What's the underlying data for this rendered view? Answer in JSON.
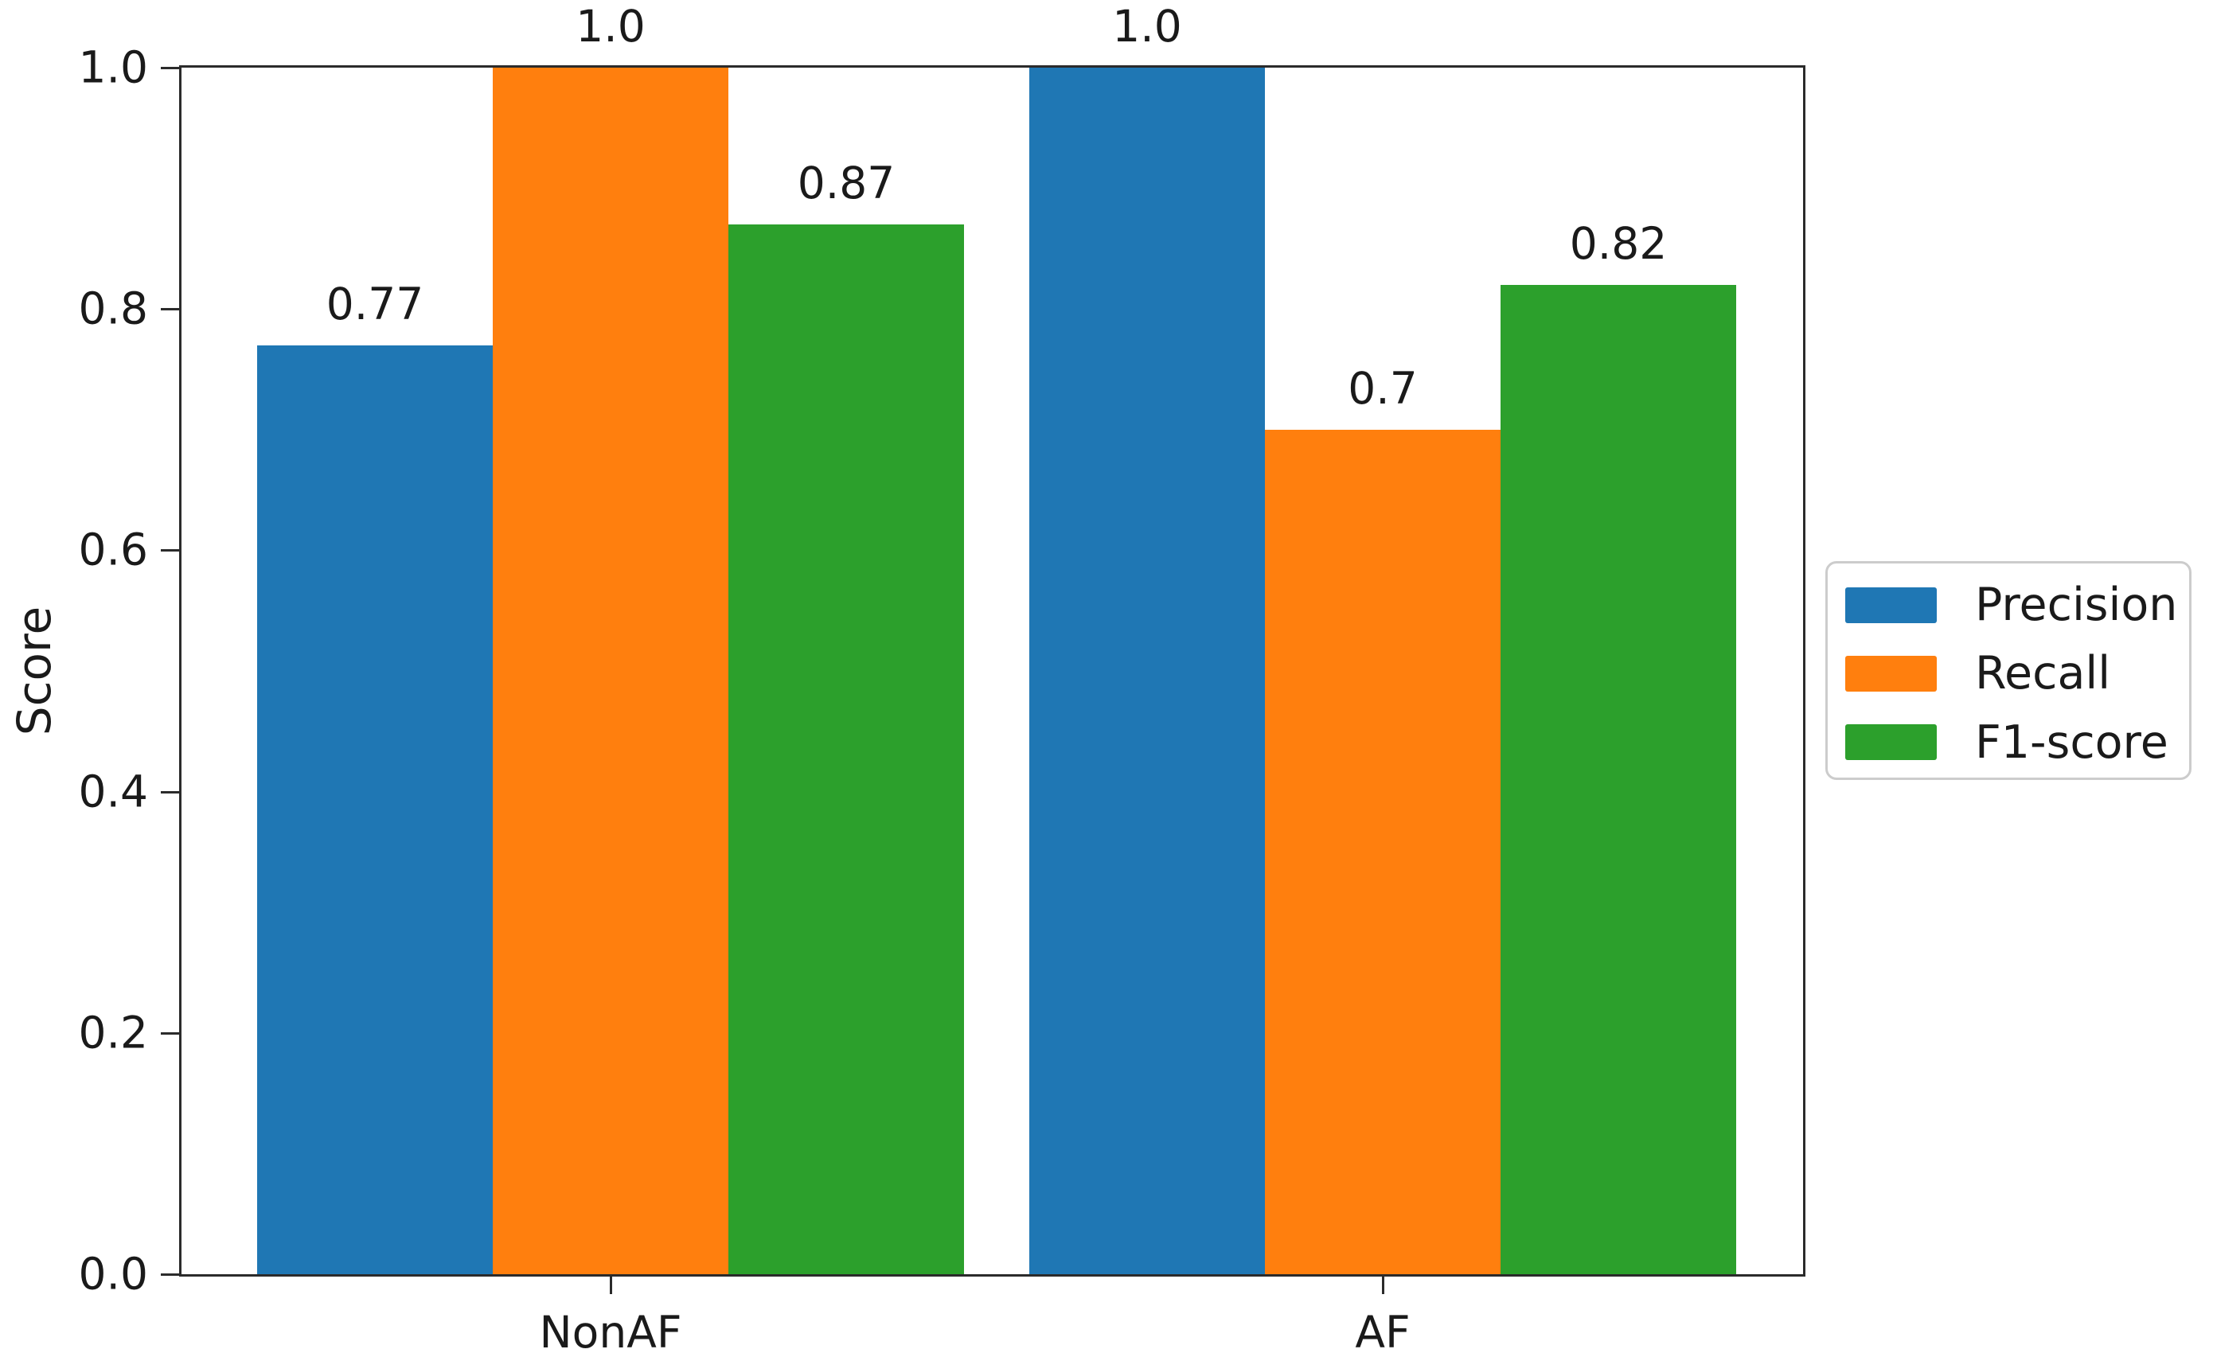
{
  "chart_data": {
    "type": "bar",
    "title": "",
    "xlabel": "",
    "ylabel": "Score",
    "categories": [
      "NonAF",
      "AF"
    ],
    "series": [
      {
        "name": "Precision",
        "color": "#1f77b4",
        "values": [
          0.77,
          1.0
        ],
        "value_labels": [
          "0.77",
          "1.0"
        ]
      },
      {
        "name": "Recall",
        "color": "#ff7f0e",
        "values": [
          1.0,
          0.7
        ],
        "value_labels": [
          "1.0",
          "0.7"
        ]
      },
      {
        "name": "F1-score",
        "color": "#2ca02c",
        "values": [
          0.87,
          0.82
        ],
        "value_labels": [
          "0.87",
          "0.82"
        ]
      }
    ],
    "ylim": [
      0.0,
      1.0
    ],
    "yticks": [
      "0.0",
      "0.2",
      "0.4",
      "0.6",
      "0.8",
      "1.0"
    ],
    "grid": false,
    "legend_position": "center-right"
  }
}
